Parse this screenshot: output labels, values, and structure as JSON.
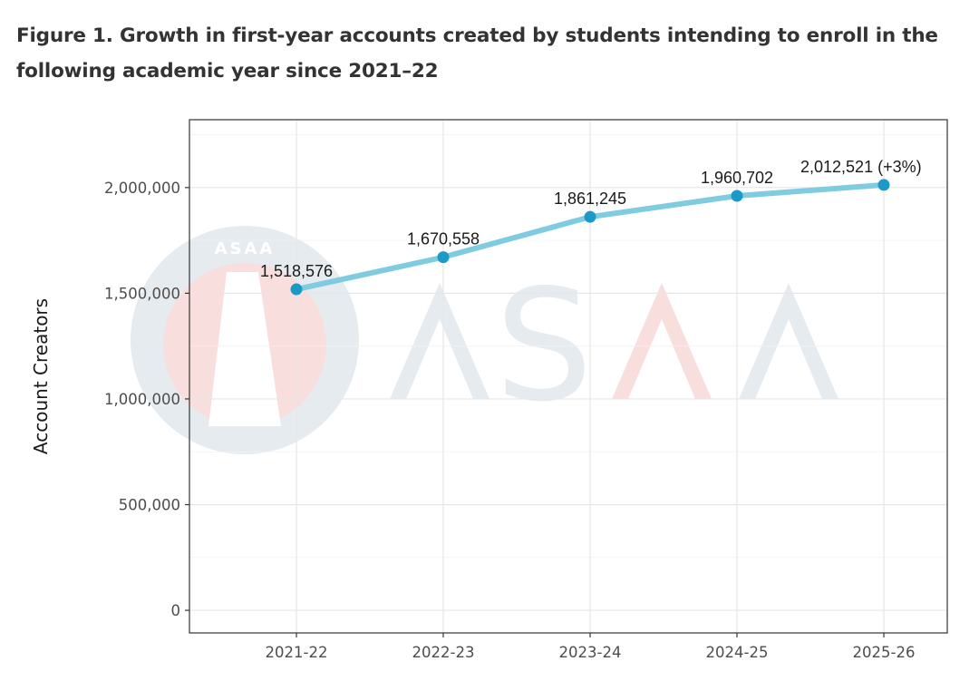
{
  "title": "Figure 1. Growth in first-year accounts created by students intending to enroll in the following academic year since 2021–22",
  "watermark": {
    "text": "ASAA",
    "colors": {
      "gray": "#e6ebf0",
      "pink": "#f9dede"
    }
  },
  "chart_data": {
    "type": "line",
    "title": "Figure 1. Growth in first-year accounts created by students intending to enroll in the following academic year since 2021–22",
    "xlabel": "",
    "ylabel": "Account Creators",
    "categories": [
      "2021-22",
      "2022-23",
      "2023-24",
      "2024-25",
      "2025-26"
    ],
    "values": [
      1518576,
      1670558,
      1861245,
      1960702,
      2012521
    ],
    "data_labels": [
      "1,518,576",
      "1,670,558",
      "1,861,245",
      "1,960,702",
      "2,012,521 (+3%)"
    ],
    "yticks": [
      0,
      500000,
      1000000,
      1500000,
      2000000
    ],
    "ytick_labels": [
      "0",
      "500,000",
      "1,000,000",
      "1,500,000",
      "2,000,000"
    ],
    "ylim": [
      -107000,
      2321000
    ],
    "grid": true,
    "line_color": "#7fcbe0",
    "point_color": "#1b9ac7"
  }
}
